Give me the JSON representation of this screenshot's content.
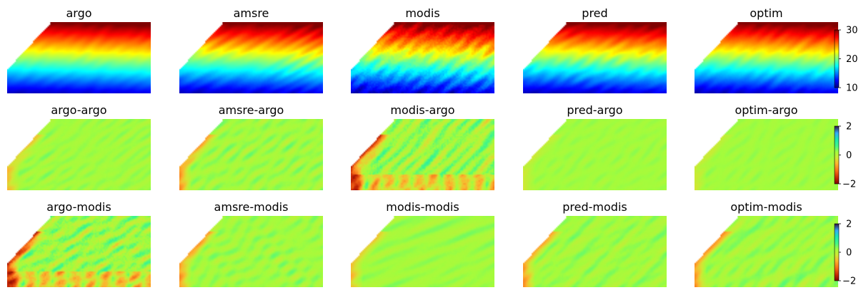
{
  "chart_data": {
    "type": "heatmap",
    "layout": {
      "rows": 3,
      "cols": 5
    },
    "panels": [
      {
        "title": "argo",
        "row": 0,
        "col": 0,
        "kind": "field",
        "pattern": "smooth"
      },
      {
        "title": "amsre",
        "row": 0,
        "col": 1,
        "kind": "field",
        "pattern": "wavy"
      },
      {
        "title": "modis",
        "row": 0,
        "col": 2,
        "kind": "field",
        "pattern": "noisy"
      },
      {
        "title": "pred",
        "row": 0,
        "col": 3,
        "kind": "field",
        "pattern": "wavy"
      },
      {
        "title": "optim",
        "row": 0,
        "col": 4,
        "kind": "field",
        "pattern": "wavy"
      },
      {
        "title": "argo-argo",
        "row": 1,
        "col": 0,
        "kind": "diff",
        "pattern": "zero"
      },
      {
        "title": "amsre-argo",
        "row": 1,
        "col": 1,
        "kind": "diff",
        "pattern": "medium"
      },
      {
        "title": "modis-argo",
        "row": 1,
        "col": 2,
        "kind": "diff",
        "pattern": "strong"
      },
      {
        "title": "pred-argo",
        "row": 1,
        "col": 3,
        "kind": "diff",
        "pattern": "smooth"
      },
      {
        "title": "optim-argo",
        "row": 1,
        "col": 4,
        "kind": "diff",
        "pattern": "smooth"
      },
      {
        "title": "argo-modis",
        "row": 2,
        "col": 0,
        "kind": "diff",
        "pattern": "strong"
      },
      {
        "title": "amsre-modis",
        "row": 2,
        "col": 1,
        "kind": "diff",
        "pattern": "medium"
      },
      {
        "title": "modis-modis",
        "row": 2,
        "col": 2,
        "kind": "diff",
        "pattern": "zero"
      },
      {
        "title": "pred-modis",
        "row": 2,
        "col": 3,
        "kind": "diff",
        "pattern": "medium"
      },
      {
        "title": "optim-modis",
        "row": 2,
        "col": 4,
        "kind": "diff",
        "pattern": "medium"
      }
    ],
    "colorbars": [
      {
        "row": 0,
        "colormap": "jet",
        "range": [
          10,
          30
        ],
        "ticks": [
          10,
          20,
          30
        ]
      },
      {
        "row": 1,
        "colormap": "turbo_r",
        "range": [
          -2,
          2
        ],
        "ticks": [
          -2,
          0,
          2
        ]
      },
      {
        "row": 2,
        "colormap": "turbo_r",
        "range": [
          -2,
          2
        ],
        "ticks": [
          -2,
          0,
          2
        ]
      }
    ],
    "grid": false
  }
}
